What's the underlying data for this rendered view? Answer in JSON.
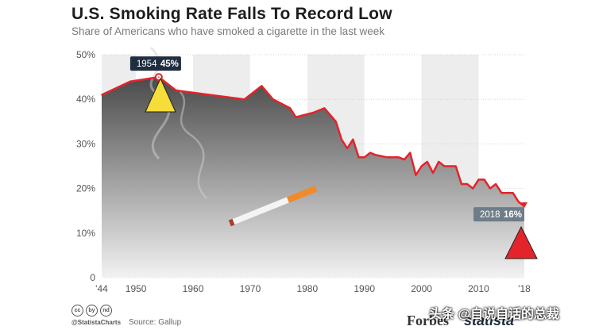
{
  "chart_data": {
    "type": "area",
    "title": "U.S. Smoking Rate Falls To Record Low",
    "subtitle": "Share of Americans who have smoked a cigarette in the last week",
    "xlabel": "",
    "ylabel": "",
    "xlim": [
      1944,
      2018
    ],
    "ylim": [
      0,
      50
    ],
    "x_ticks": [
      "'44",
      "1950",
      "1960",
      "1970",
      "1980",
      "1990",
      "2000",
      "2010",
      "'18"
    ],
    "x_tick_values": [
      1944,
      1950,
      1960,
      1970,
      1980,
      1990,
      2000,
      2010,
      2018
    ],
    "y_ticks": [
      "0",
      "10%",
      "20%",
      "30%",
      "40%",
      "50%"
    ],
    "y_tick_values": [
      0,
      10,
      20,
      30,
      40,
      50
    ],
    "x": [
      1944,
      1949,
      1954,
      1957,
      1969,
      1971,
      1972,
      1974,
      1977,
      1978,
      1981,
      1983,
      1985,
      1986,
      1987,
      1988,
      1989,
      1990,
      1991,
      1992,
      1994,
      1996,
      1997,
      1998,
      1999,
      2000,
      2001,
      2002,
      2003,
      2004,
      2005,
      2006,
      2007,
      2008,
      2009,
      2010,
      2011,
      2012,
      2013,
      2014,
      2015,
      2016,
      2017,
      2018
    ],
    "values": [
      41,
      44,
      45,
      42,
      40,
      42,
      43,
      40,
      38,
      36,
      37,
      38,
      35,
      31,
      29,
      31,
      27,
      27,
      28,
      27.5,
      27,
      27,
      26.5,
      28,
      23,
      25,
      26,
      23.5,
      26,
      25,
      25,
      25,
      21,
      21,
      20,
      22,
      22,
      20,
      21,
      19,
      19,
      19,
      17,
      16
    ],
    "line_color": "#e3242b",
    "grid": true,
    "annotations": [
      {
        "year_label": "1954",
        "value_label": "45%",
        "x": 1954,
        "y": 45
      },
      {
        "year_label": "2018",
        "value_label": "16%",
        "x": 2018,
        "y": 16
      }
    ]
  },
  "footer": {
    "handle": "@StatistaCharts",
    "source": "Source: Gallup",
    "cc_icons": [
      "cc",
      "by",
      "nd"
    ]
  },
  "brands": {
    "forbes": "Forbes",
    "statista": "statista"
  },
  "watermark": "头条 @自说自话的总裁"
}
